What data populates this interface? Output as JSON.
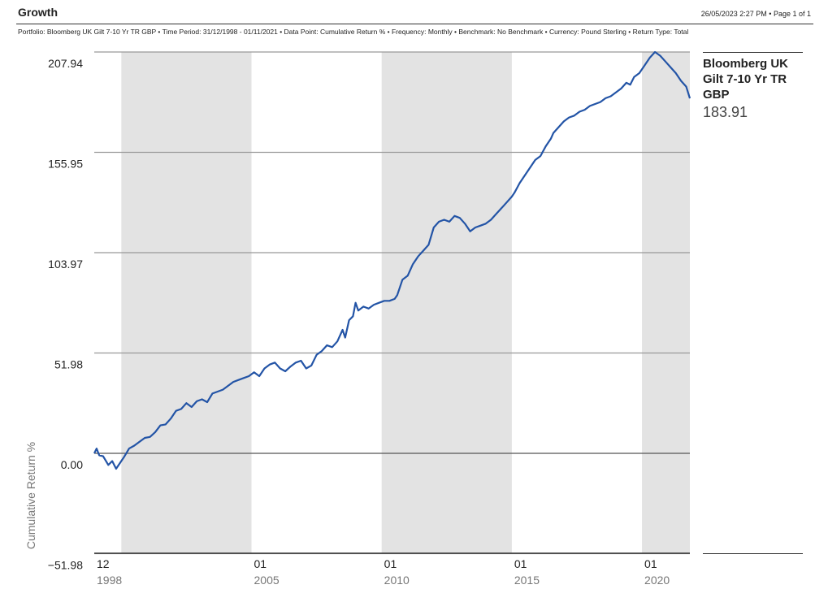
{
  "header": {
    "title": "Growth",
    "meta": "26/05/2023 2:27 PM • Page 1 of 1",
    "subtitle": "Portfolio: Bloomberg UK Gilt 7-10 Yr TR GBP • Time Period: 31/12/1998 - 01/11/2021 • Data Point: Cumulative Return % • Frequency: Monthly • Benchmark: No Benchmark • Currency: Pound Sterling • Return Type: Total"
  },
  "legend": {
    "name": "Bloomberg UK Gilt 7-10 Yr TR GBP",
    "value": "183.91"
  },
  "chart_data": {
    "type": "line",
    "title": "",
    "xlabel": "",
    "ylabel": "Cumulative Return %",
    "yticks": [
      "207.94",
      "155.95",
      "103.97",
      "51.98",
      "0.00",
      "−51.98"
    ],
    "ytick_values": [
      207.94,
      155.95,
      103.97,
      51.98,
      0.0,
      -51.98
    ],
    "ylim": [
      -51.98,
      207.94
    ],
    "xlim": [
      1998.96,
      2021.84
    ],
    "xticks": [
      {
        "top": "12",
        "bottom": "1998",
        "x": 1998.96
      },
      {
        "top": "01",
        "bottom": "2005",
        "x": 2005.0
      },
      {
        "top": "01",
        "bottom": "2010",
        "x": 2010.0
      },
      {
        "top": "01",
        "bottom": "2015",
        "x": 2015.0
      },
      {
        "top": "01",
        "bottom": "2020",
        "x": 2020.0
      }
    ],
    "shaded_bands": [
      [
        2000.0,
        2005.0
      ],
      [
        2010.0,
        2015.0
      ],
      [
        2020.0,
        2021.84
      ]
    ],
    "grid": true,
    "line_color": "#2354a6",
    "series": [
      {
        "name": "Bloomberg UK Gilt 7-10 Yr TR GBP",
        "x": [
          1998.96,
          1999.05,
          1999.15,
          1999.3,
          1999.5,
          1999.65,
          1999.8,
          1999.95,
          2000.1,
          2000.3,
          2000.5,
          2000.7,
          2000.9,
          2001.1,
          2001.3,
          2001.5,
          2001.7,
          2001.9,
          2002.1,
          2002.3,
          2002.5,
          2002.7,
          2002.9,
          2003.1,
          2003.3,
          2003.5,
          2003.7,
          2003.9,
          2004.1,
          2004.3,
          2004.5,
          2004.7,
          2004.9,
          2005.1,
          2005.3,
          2005.5,
          2005.7,
          2005.9,
          2006.1,
          2006.3,
          2006.5,
          2006.7,
          2006.9,
          2007.1,
          2007.3,
          2007.5,
          2007.7,
          2007.9,
          2008.1,
          2008.3,
          2008.5,
          2008.6,
          2008.75,
          2008.9,
          2009.0,
          2009.1,
          2009.3,
          2009.5,
          2009.7,
          2009.9,
          2010.1,
          2010.3,
          2010.5,
          2010.6,
          2010.8,
          2011.0,
          2011.2,
          2011.4,
          2011.6,
          2011.8,
          2012.0,
          2012.2,
          2012.4,
          2012.6,
          2012.8,
          2013.0,
          2013.2,
          2013.4,
          2013.6,
          2013.8,
          2014.0,
          2014.2,
          2014.4,
          2014.6,
          2014.8,
          2015.0,
          2015.1,
          2015.3,
          2015.5,
          2015.7,
          2015.9,
          2016.1,
          2016.3,
          2016.5,
          2016.6,
          2016.8,
          2017.0,
          2017.2,
          2017.4,
          2017.6,
          2017.8,
          2018.0,
          2018.2,
          2018.4,
          2018.6,
          2018.8,
          2019.0,
          2019.2,
          2019.4,
          2019.55,
          2019.7,
          2019.9,
          2020.1,
          2020.3,
          2020.5,
          2020.7,
          2020.9,
          2021.1,
          2021.3,
          2021.5,
          2021.7,
          2021.84
        ],
        "y": [
          0.0,
          2.5,
          -1.0,
          -1.5,
          -6.0,
          -4.0,
          -8.0,
          -5.0,
          -2.0,
          2.5,
          4.0,
          6.0,
          8.0,
          8.5,
          11.0,
          14.5,
          15.0,
          18.0,
          22.0,
          23.0,
          26.0,
          24.0,
          27.0,
          28.0,
          26.5,
          31.0,
          32.0,
          33.0,
          35.0,
          37.0,
          38.0,
          39.0,
          40.0,
          42.0,
          40.0,
          44.0,
          46.0,
          47.0,
          44.0,
          42.5,
          45.0,
          47.0,
          48.0,
          44.0,
          45.5,
          51.0,
          53.0,
          56.0,
          55.0,
          58.0,
          64.0,
          60.0,
          69.0,
          71.0,
          78.0,
          74.0,
          76.0,
          75.0,
          77.0,
          78.0,
          79.0,
          79.0,
          80.0,
          82.0,
          90.0,
          92.0,
          98.0,
          102.0,
          105.0,
          108.0,
          117.0,
          120.0,
          121.0,
          120.0,
          123.0,
          122.0,
          119.0,
          115.0,
          117.0,
          118.0,
          119.0,
          121.0,
          124.0,
          127.0,
          130.0,
          133.0,
          135.0,
          140.0,
          144.0,
          148.0,
          152.0,
          154.0,
          159.0,
          163.0,
          166.0,
          169.0,
          172.0,
          174.0,
          175.0,
          177.0,
          178.0,
          180.0,
          181.0,
          182.0,
          184.0,
          185.0,
          187.0,
          189.0,
          192.0,
          191.0,
          195.0,
          197.0,
          201.0,
          205.0,
          207.94,
          206.0,
          203.0,
          200.0,
          197.0,
          193.0,
          190.0,
          183.91
        ]
      }
    ]
  }
}
